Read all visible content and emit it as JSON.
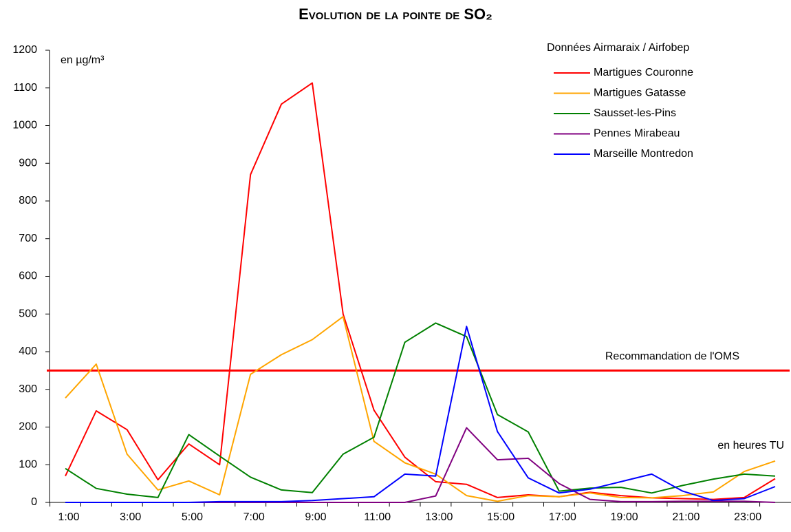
{
  "chart_data": {
    "type": "line",
    "title": "Evolution de la pointe de SO₂",
    "y_label": "en µg/m³",
    "x_label": "en heures TU",
    "legend_title": "Données Airmaraix / Airfobep",
    "legend": "top-right",
    "grid": false,
    "categories": [
      "1:00",
      null,
      "3:00",
      null,
      "5:00",
      null,
      "7:00",
      null,
      "9:00",
      null,
      "11:00",
      null,
      "13:00",
      null,
      "15:00",
      null,
      "17:00",
      null,
      "19:00",
      null,
      "21:00",
      null,
      "23:00",
      null
    ],
    "ylim": [
      0,
      1200
    ],
    "yticks": [
      0,
      100,
      200,
      300,
      400,
      500,
      600,
      700,
      800,
      900,
      1000,
      1100,
      1200
    ],
    "reference_line": {
      "label": "Recommandation de l'OMS",
      "value": 350,
      "color": "#ff0000"
    },
    "series": [
      {
        "name": "Martigues Couronne",
        "color": "#ff0000",
        "values": [
          70,
          243,
          193,
          60,
          155,
          100,
          870,
          1057,
          1113,
          500,
          245,
          120,
          55,
          48,
          13,
          20,
          15,
          27,
          18,
          12,
          10,
          8,
          13,
          63
        ]
      },
      {
        "name": "Martigues Gatasse",
        "color": "#ffa500",
        "values": [
          277,
          367,
          128,
          33,
          57,
          20,
          340,
          392,
          432,
          493,
          162,
          105,
          75,
          18,
          3,
          18,
          15,
          25,
          13,
          12,
          18,
          28,
          82,
          110
        ]
      },
      {
        "name": "Sausset-les-Pins",
        "color": "#008000",
        "values": [
          90,
          37,
          22,
          13,
          180,
          123,
          67,
          33,
          26,
          128,
          173,
          425,
          476,
          440,
          233,
          187,
          30,
          38,
          40,
          25,
          45,
          62,
          75,
          70
        ]
      },
      {
        "name": "Pennes Mirabeau",
        "color": "#800080",
        "values": [
          0,
          0,
          0,
          0,
          0,
          0,
          0,
          0,
          0,
          0,
          0,
          0,
          17,
          198,
          113,
          117,
          50,
          8,
          2,
          2,
          3,
          3,
          3,
          0
        ]
      },
      {
        "name": "Marseille Montredon",
        "color": "#0000ff",
        "values": [
          0,
          0,
          0,
          0,
          0,
          2,
          2,
          2,
          5,
          10,
          15,
          75,
          70,
          467,
          188,
          65,
          25,
          35,
          55,
          75,
          30,
          5,
          10,
          42
        ]
      }
    ]
  }
}
